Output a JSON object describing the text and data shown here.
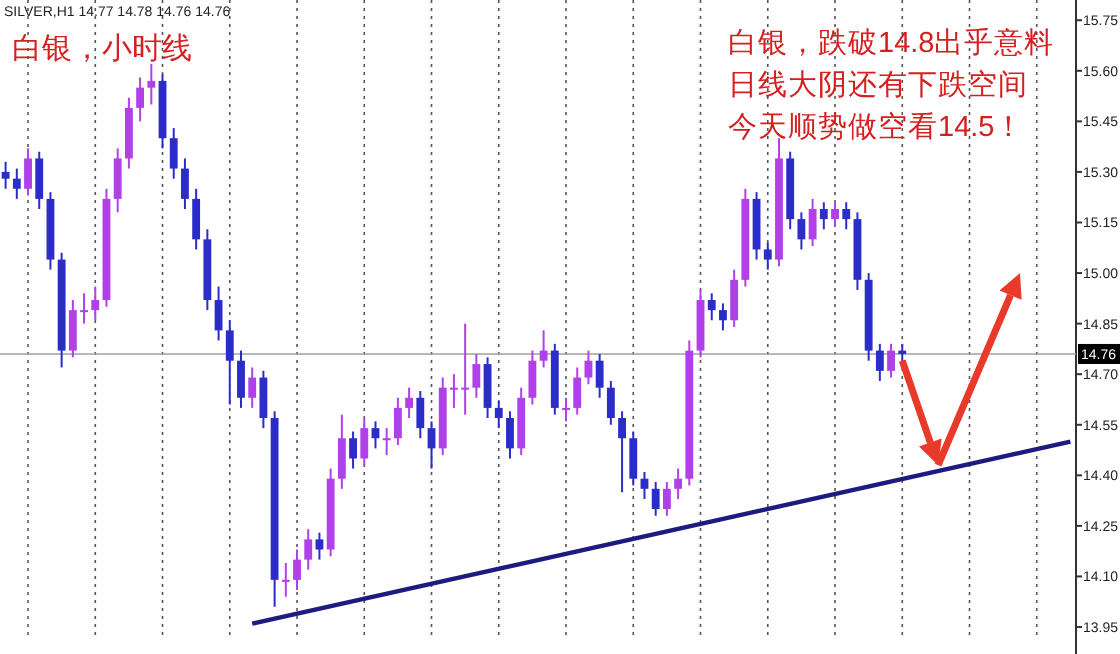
{
  "chart_data": {
    "type": "candlestick",
    "annotations": [
      "SILVER,H1  14.77 14.78 14.76 14.76",
      "白银，小时线",
      "白银，跌破14.8出乎意料",
      "日线大阴还有下跌空间",
      "今天顺势做空看14.5！"
    ],
    "categories": [
      null,
      null,
      null,
      null,
      null,
      null,
      null,
      null,
      null,
      null,
      null,
      null,
      null,
      null,
      null,
      null,
      null,
      null,
      null,
      null,
      null,
      null,
      null,
      null,
      null,
      null,
      null,
      null,
      null,
      null,
      null,
      null,
      null,
      null,
      null,
      null,
      null,
      null,
      null,
      null,
      null,
      null,
      null,
      null,
      null,
      null,
      null,
      null,
      null,
      null,
      null,
      null,
      null,
      null,
      null,
      null,
      null,
      null,
      null,
      null,
      null,
      null,
      null,
      null,
      null,
      null,
      null,
      null,
      null,
      null,
      null,
      null,
      null,
      null,
      null,
      null,
      null,
      null,
      null,
      null,
      null,
      null,
      null,
      null,
      null,
      null,
      null,
      null,
      null,
      null,
      null,
      null,
      null,
      null,
      null,
      null
    ],
    "series": [
      {
        "colors": [
          "#2c2cc8",
          "#2c2cc8",
          "#b040e8",
          "#2c2cc8",
          "#2c2cc8",
          "#2c2cc8",
          "#b040e8",
          "#b040e8",
          "#b040e8",
          "#b040e8",
          "#b040e8",
          "#b040e8",
          "#b040e8",
          "#b040e8",
          "#2c2cc8",
          "#2c2cc8",
          "#2c2cc8",
          "#2c2cc8",
          "#2c2cc8",
          "#2c2cc8",
          "#2c2cc8",
          "#2c2cc8",
          "#b040e8",
          "#2c2cc8",
          "#2c2cc8",
          "#b040e8",
          "#b040e8",
          "#b040e8",
          "#2c2cc8",
          "#b040e8",
          "#b040e8",
          "#2c2cc8",
          "#b040e8",
          "#2c2cc8",
          "#b040e8",
          "#b040e8",
          "#b040e8",
          "#2c2cc8",
          "#2c2cc8",
          "#b040e8",
          "#b040e8",
          "#b040e8",
          "#b040e8",
          "#2c2cc8",
          "#2c2cc8",
          "#2c2cc8",
          "#b040e8",
          "#b040e8",
          "#b040e8",
          "#2c2cc8",
          "#b040e8",
          "#b040e8",
          "#b040e8",
          "#2c2cc8",
          "#2c2cc8",
          "#2c2cc8",
          "#2c2cc8",
          "#2c2cc8",
          "#2c2cc8",
          "#b040e8",
          "#b040e8",
          "#b040e8",
          "#b040e8",
          "#2c2cc8",
          "#2c2cc8",
          "#b040e8",
          "#b040e8",
          "#2c2cc8",
          "#2c2cc8",
          "#b040e8",
          "#2c2cc8",
          "#2c2cc8",
          "#b040e8",
          "#2c2cc8",
          "#b040e8",
          "#2c2cc8",
          "#2c2cc8",
          "#2c2cc8",
          "#2c2cc8",
          "#b040e8",
          "#2c2cc8",
          null,
          null,
          null,
          null,
          null,
          null,
          null,
          null,
          null,
          null,
          null,
          null,
          null,
          null,
          null
        ],
        "ohlc": [
          [
            15.3,
            15.33,
            15.25,
            15.28
          ],
          [
            15.28,
            15.31,
            15.22,
            15.25
          ],
          [
            15.25,
            15.37,
            15.23,
            15.34
          ],
          [
            15.34,
            15.36,
            15.19,
            15.22
          ],
          [
            15.22,
            15.24,
            15.01,
            15.04
          ],
          [
            15.04,
            15.06,
            14.72,
            14.77
          ],
          [
            14.77,
            14.92,
            14.75,
            14.89
          ],
          [
            14.89,
            14.94,
            14.85,
            14.89
          ],
          [
            14.89,
            14.96,
            14.86,
            14.92
          ],
          [
            14.92,
            15.25,
            14.9,
            15.22
          ],
          [
            15.22,
            15.37,
            15.18,
            15.34
          ],
          [
            15.34,
            15.52,
            15.31,
            15.49
          ],
          [
            15.49,
            15.58,
            15.45,
            15.55
          ],
          [
            15.55,
            15.62,
            15.5,
            15.57
          ],
          [
            15.57,
            15.59,
            15.37,
            15.4
          ],
          [
            15.4,
            15.43,
            15.28,
            15.31
          ],
          [
            15.31,
            15.34,
            15.19,
            15.22
          ],
          [
            15.22,
            15.25,
            15.07,
            15.1
          ],
          [
            15.1,
            15.13,
            14.89,
            14.92
          ],
          [
            14.92,
            14.96,
            14.8,
            14.83
          ],
          [
            14.83,
            14.86,
            14.61,
            14.74
          ],
          [
            14.74,
            14.77,
            14.6,
            14.63
          ],
          [
            14.63,
            14.72,
            14.6,
            14.69
          ],
          [
            14.69,
            14.71,
            14.54,
            14.57
          ],
          [
            14.57,
            14.59,
            14.01,
            14.09
          ],
          [
            14.09,
            14.14,
            14.04,
            14.09
          ],
          [
            14.09,
            14.18,
            14.06,
            14.15
          ],
          [
            14.15,
            14.24,
            14.12,
            14.21
          ],
          [
            14.21,
            14.23,
            14.15,
            14.18
          ],
          [
            14.18,
            14.42,
            14.16,
            14.39
          ],
          [
            14.39,
            14.58,
            14.36,
            14.51
          ],
          [
            14.51,
            14.53,
            14.42,
            14.45
          ],
          [
            14.45,
            14.57,
            14.43,
            14.54
          ],
          [
            14.54,
            14.56,
            14.48,
            14.51
          ],
          [
            14.51,
            14.54,
            14.46,
            14.51
          ],
          [
            14.51,
            14.63,
            14.49,
            14.6
          ],
          [
            14.6,
            14.66,
            14.57,
            14.63
          ],
          [
            14.63,
            14.65,
            14.51,
            14.54
          ],
          [
            14.54,
            14.56,
            14.42,
            14.48
          ],
          [
            14.48,
            14.69,
            14.46,
            14.66
          ],
          [
            14.66,
            14.7,
            14.6,
            14.66
          ],
          [
            14.66,
            14.85,
            14.58,
            14.66
          ],
          [
            14.66,
            14.76,
            14.63,
            14.73
          ],
          [
            14.73,
            14.75,
            14.57,
            14.6
          ],
          [
            14.6,
            14.62,
            14.54,
            14.57
          ],
          [
            14.57,
            14.59,
            14.45,
            14.48
          ],
          [
            14.48,
            14.66,
            14.46,
            14.63
          ],
          [
            14.63,
            14.77,
            14.61,
            14.74
          ],
          [
            14.74,
            14.83,
            14.72,
            14.77
          ],
          [
            14.77,
            14.79,
            14.58,
            14.6
          ],
          [
            14.6,
            14.63,
            14.56,
            14.6
          ],
          [
            14.6,
            14.72,
            14.58,
            14.69
          ],
          [
            14.69,
            14.77,
            14.67,
            14.74
          ],
          [
            14.74,
            14.76,
            14.63,
            14.66
          ],
          [
            14.66,
            14.68,
            14.55,
            14.57
          ],
          [
            14.57,
            14.59,
            14.35,
            14.51
          ],
          [
            14.51,
            14.53,
            14.37,
            14.39
          ],
          [
            14.39,
            14.41,
            14.33,
            14.36
          ],
          [
            14.36,
            14.38,
            14.28,
            14.3
          ],
          [
            14.3,
            14.38,
            14.28,
            14.36
          ],
          [
            14.36,
            14.42,
            14.33,
            14.39
          ],
          [
            14.39,
            14.8,
            14.37,
            14.77
          ],
          [
            14.77,
            14.95,
            14.75,
            14.92
          ],
          [
            14.92,
            14.94,
            14.86,
            14.89
          ],
          [
            14.89,
            14.91,
            14.83,
            14.86
          ],
          [
            14.86,
            15.01,
            14.84,
            14.98
          ],
          [
            14.98,
            15.25,
            14.96,
            15.22
          ],
          [
            15.22,
            15.24,
            15.04,
            15.07
          ],
          [
            15.07,
            15.09,
            15.01,
            15.04
          ],
          [
            15.04,
            15.4,
            15.02,
            15.34
          ],
          [
            15.34,
            15.36,
            15.13,
            15.16
          ],
          [
            15.16,
            15.18,
            15.07,
            15.1
          ],
          [
            15.1,
            15.22,
            15.08,
            15.19
          ],
          [
            15.19,
            15.21,
            15.13,
            15.16
          ],
          [
            15.16,
            15.21,
            15.14,
            15.19
          ],
          [
            15.19,
            15.21,
            15.13,
            15.16
          ],
          [
            15.16,
            15.18,
            14.95,
            14.98
          ],
          [
            14.98,
            15.0,
            14.74,
            14.77
          ],
          [
            14.77,
            14.79,
            14.68,
            14.71
          ],
          [
            14.71,
            14.79,
            14.69,
            14.77
          ],
          [
            14.77,
            14.79,
            14.74,
            14.76
          ],
          null,
          null,
          null,
          null,
          null,
          null,
          null,
          null,
          null,
          null,
          null,
          null,
          null,
          null,
          null
        ]
      },
      {
        "type": "line",
        "color": "#1c1c80",
        "values": [
          null,
          null,
          null,
          null,
          null,
          null,
          null,
          null,
          null,
          null,
          null,
          null,
          null,
          null,
          null,
          null,
          null,
          null,
          null,
          null,
          null,
          null,
          13.96,
          null,
          null,
          null,
          null,
          null,
          null,
          null,
          null,
          null,
          null,
          null,
          null,
          null,
          null,
          null,
          null,
          null,
          null,
          null,
          null,
          null,
          null,
          null,
          null,
          null,
          null,
          null,
          null,
          null,
          null,
          null,
          null,
          null,
          null,
          null,
          null,
          null,
          null,
          null,
          null,
          null,
          null,
          null,
          null,
          null,
          null,
          null,
          null,
          null,
          null,
          null,
          null,
          null,
          null,
          null,
          null,
          null,
          null,
          null,
          null,
          null,
          null,
          null,
          null,
          null,
          null,
          null,
          null,
          null,
          null,
          null,
          null,
          14.5
        ]
      }
    ],
    "ylim": [
      13.87,
      15.81
    ],
    "yticks": [
      15.75,
      {
        "value": 15.6,
        "label": "15.60"
      },
      15.45,
      {
        "value": 15.3,
        "label": "15.30"
      },
      15.15,
      {
        "value": 15.0,
        "label": "15.00"
      },
      14.85,
      {
        "value": 14.7,
        "label": "14.70"
      },
      14.55,
      {
        "value": 14.4,
        "label": "14.40"
      },
      14.25,
      {
        "value": 14.1,
        "label": "14.10"
      },
      13.95
    ],
    "ref_lines": [
      {
        "axis": "y",
        "value": 14.76,
        "label": "14.76",
        "color": "#a0a0a0"
      }
    ],
    "grid": "x",
    "tick_labels": "y"
  }
}
